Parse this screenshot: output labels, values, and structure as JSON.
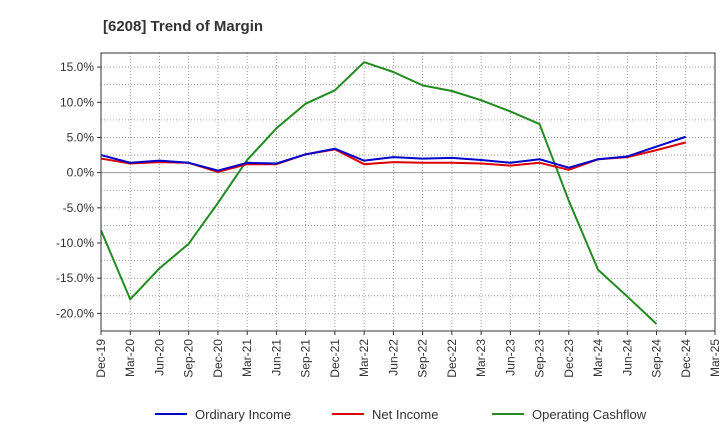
{
  "chart_data": {
    "type": "line",
    "title": "[6208]  Trend of Margin",
    "xlabel": "",
    "ylabel": "",
    "ylim": [
      -22.5,
      17.0
    ],
    "y_ticks": [
      15.0,
      10.0,
      5.0,
      0.0,
      -5.0,
      -10.0,
      -15.0,
      -20.0
    ],
    "y_tick_labels": [
      "15.0%",
      "10.0%",
      "5.0%",
      "0.0%",
      "-5.0%",
      "-10.0%",
      "-15.0%",
      "-20.0%"
    ],
    "x_tick_labels": [
      "Dec-19",
      "Mar-20",
      "Jun-20",
      "Sep-20",
      "Dec-20",
      "Mar-21",
      "Jun-21",
      "Sep-21",
      "Dec-21",
      "Mar-22",
      "Jun-22",
      "Sep-22",
      "Dec-22",
      "Mar-23",
      "Jun-23",
      "Sep-23",
      "Dec-23",
      "Mar-24",
      "Jun-24",
      "Sep-24",
      "Dec-24",
      "Mar-25"
    ],
    "grid": true,
    "legend": "bottom",
    "series": [
      {
        "name": "Ordinary Income",
        "color": "#0000cc",
        "values": [
          2.5,
          1.4,
          1.7,
          1.4,
          0.3,
          1.4,
          1.3,
          2.6,
          3.4,
          1.7,
          2.2,
          2.0,
          2.1,
          1.8,
          1.4,
          1.9,
          0.7,
          1.9,
          2.3,
          3.7,
          5.1,
          null
        ]
      },
      {
        "name": "Net Income",
        "color": "#dd0000",
        "values": [
          2.0,
          1.3,
          1.5,
          1.4,
          0.1,
          1.2,
          1.2,
          2.6,
          3.3,
          1.2,
          1.5,
          1.4,
          1.4,
          1.3,
          1.0,
          1.4,
          0.4,
          1.9,
          2.2,
          3.2,
          4.3,
          null
        ]
      },
      {
        "name": "Operating Cashflow",
        "color": "#228b22",
        "values": [
          -8.2,
          -18.0,
          -13.6,
          -10.1,
          -4.3,
          1.8,
          6.3,
          9.8,
          11.7,
          15.7,
          14.3,
          12.4,
          11.6,
          10.3,
          8.7,
          6.9,
          -4.0,
          -13.8,
          -17.6,
          -21.5,
          null,
          null
        ]
      }
    ]
  }
}
